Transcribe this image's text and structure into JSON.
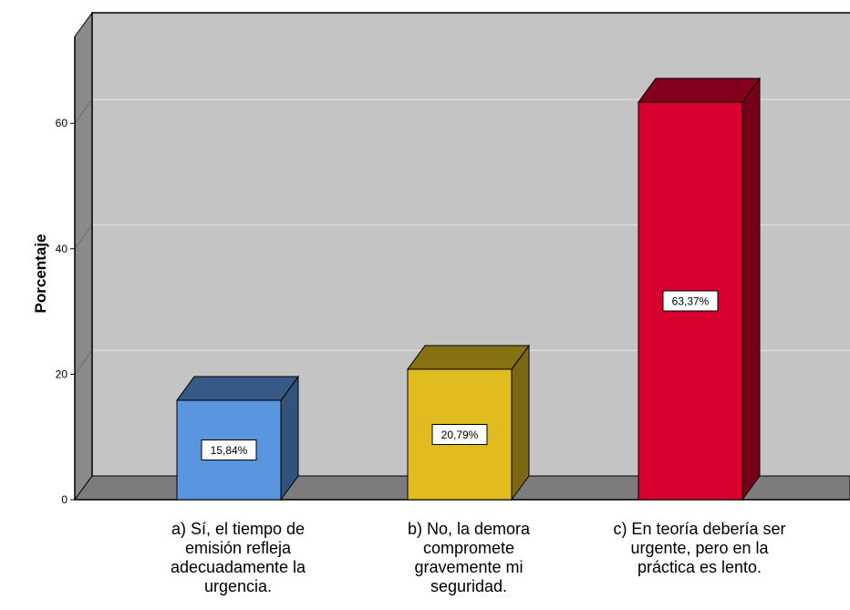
{
  "chart_data": {
    "type": "bar",
    "style": "3d",
    "ylabel": "Porcentaje",
    "xlabel": "",
    "ylim": [
      0,
      75
    ],
    "yticks": [
      0,
      20,
      40,
      60
    ],
    "grid": true,
    "categories": [
      [
        "a) Sí, el tiempo de",
        "emisión refleja",
        "adecuadamente la",
        "urgencia."
      ],
      [
        "b) No, la demora",
        "compromete",
        "gravemente mi",
        "seguridad."
      ],
      [
        "c) En teoría debería ser",
        "urgente, pero en la",
        "práctica es lento."
      ]
    ],
    "values": [
      15.84,
      20.79,
      63.37
    ],
    "data_labels": [
      "15,84%",
      "20,79%",
      "63,37%"
    ],
    "colors": {
      "bars": [
        "#5a95e0",
        "#e0bc20",
        "#d8002e"
      ],
      "wall": "#c4c4c4",
      "floor": "#7c7c7c",
      "gridline": "#dadada"
    }
  }
}
